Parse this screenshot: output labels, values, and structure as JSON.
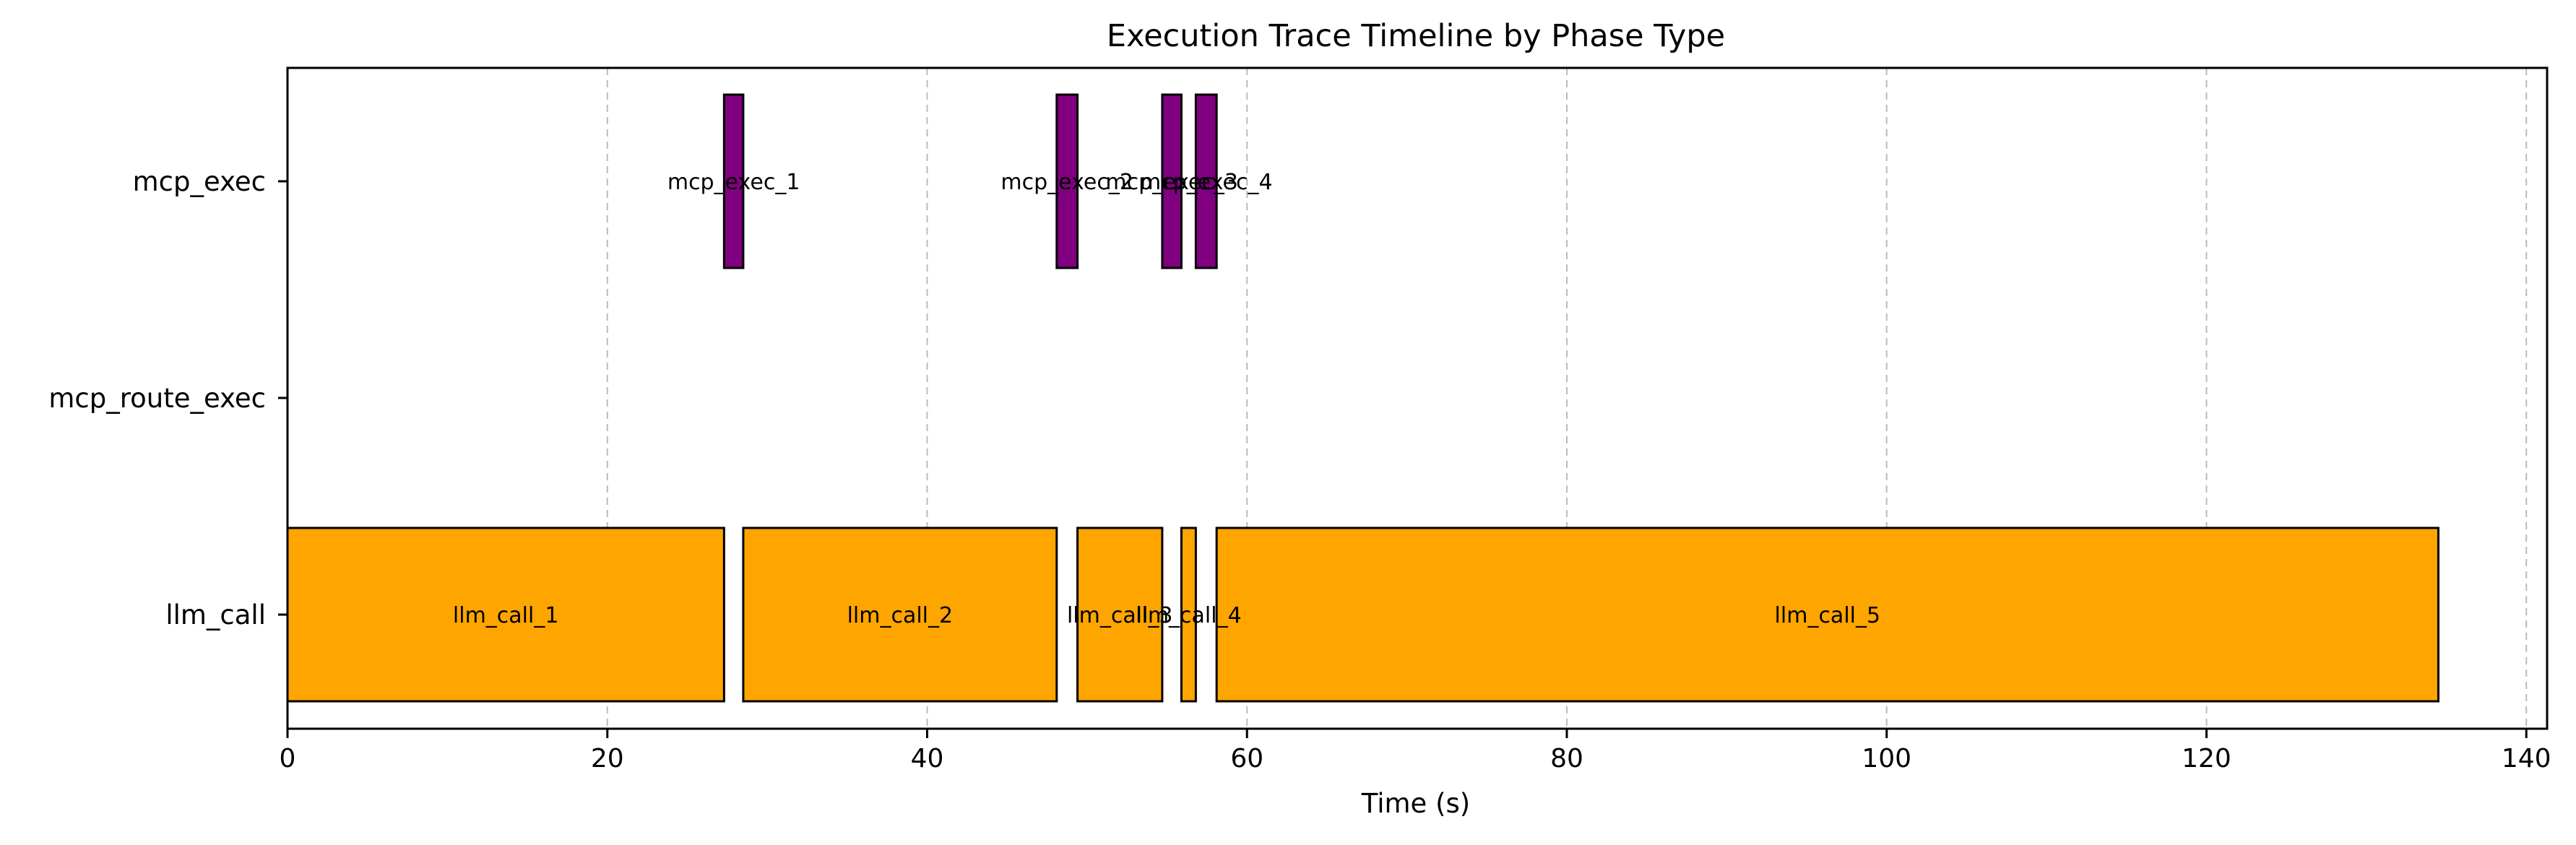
{
  "chart_data": {
    "type": "timeline",
    "title": "Execution Trace Timeline by Phase Type",
    "xlabel": "Time (s)",
    "ylabel": "",
    "xlim": [
      0,
      141.3
    ],
    "x_ticks": [
      0,
      20,
      40,
      60,
      80,
      100,
      120,
      140
    ],
    "grid": {
      "x": true,
      "y": false,
      "style": "dashed"
    },
    "categories": [
      "llm_call",
      "mcp_route_exec",
      "mcp_exec"
    ],
    "series": [
      {
        "name": "llm_call",
        "color": "#FFA500",
        "segments": [
          {
            "label": "llm_call_1",
            "start": 0.0,
            "end": 27.3
          },
          {
            "label": "llm_call_2",
            "start": 28.5,
            "end": 48.1
          },
          {
            "label": "llm_call_3",
            "start": 49.4,
            "end": 54.7
          },
          {
            "label": "llm_call_4",
            "start": 55.9,
            "end": 56.8
          },
          {
            "label": "llm_call_5",
            "start": 58.1,
            "end": 134.5
          }
        ]
      },
      {
        "name": "mcp_route_exec",
        "color": "#800080",
        "segments": []
      },
      {
        "name": "mcp_exec",
        "color": "#800080",
        "segments": [
          {
            "label": "mcp_exec_1",
            "start": 27.3,
            "end": 28.5
          },
          {
            "label": "mcp_exec_2",
            "start": 48.1,
            "end": 49.4
          },
          {
            "label": "mcp_exec_3",
            "start": 54.7,
            "end": 55.9
          },
          {
            "label": "mcp_exec_4",
            "start": 56.8,
            "end": 58.1
          }
        ]
      }
    ]
  }
}
